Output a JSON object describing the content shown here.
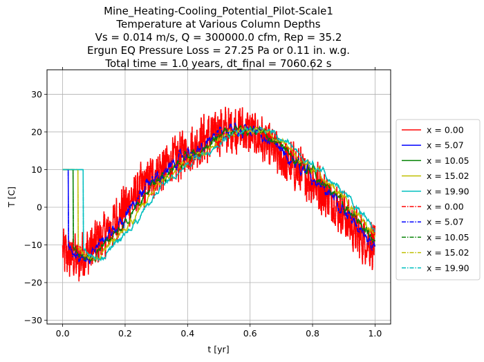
{
  "chart_data": {
    "type": "line",
    "title_lines": [
      "Mine_Heating-Cooling_Potential_Pilot-Scale1",
      "Temperature at Various Column Depths",
      "Vs = 0.014 m/s, Q = 300000.0 cfm, Rep = 35.2",
      "Ergun EQ Pressure Loss = 27.25 Pa or 0.11 in. w.g.",
      "Total time = 1.0 years, dt_final = 7060.62 s"
    ],
    "xlabel": "t [yr]",
    "ylabel": "T [C]",
    "xlim": [
      -0.05,
      1.05
    ],
    "ylim": [
      -31,
      36.5
    ],
    "xticks": [
      0.0,
      0.2,
      0.4,
      0.6,
      0.8,
      1.0
    ],
    "xtick_labels": [
      "0.0",
      "0.2",
      "0.4",
      "0.6",
      "0.8",
      "1.0"
    ],
    "yticks": [
      -30,
      -20,
      -10,
      0,
      10,
      20,
      30
    ],
    "ytick_labels": [
      "−30",
      "−20",
      "−10",
      "0",
      "10",
      "20",
      "30"
    ],
    "grid": true,
    "legend_position": "outside-right",
    "initial_temperature": 10,
    "series": [
      {
        "name": "x = 0.00",
        "color": "#ff0000",
        "dash": "solid",
        "lag": 0.0,
        "smooth": 0.0
      },
      {
        "name": "x = 5.07",
        "color": "#0000ff",
        "dash": "solid",
        "lag": 0.018,
        "smooth": 0.45
      },
      {
        "name": "x = 10.05",
        "color": "#008000",
        "dash": "solid",
        "lag": 0.034,
        "smooth": 0.62
      },
      {
        "name": "x = 15.02",
        "color": "#bfbf00",
        "dash": "solid",
        "lag": 0.05,
        "smooth": 0.76
      },
      {
        "name": "x = 19.90",
        "color": "#00bfbf",
        "dash": "solid",
        "lag": 0.066,
        "smooth": 0.88
      },
      {
        "name": "x = 0.00",
        "color": "#ff0000",
        "dash": "dashdot",
        "lag": 0.0,
        "smooth": 0.0
      },
      {
        "name": "x = 5.07",
        "color": "#0000ff",
        "dash": "dashdot",
        "lag": 0.018,
        "smooth": 0.45
      },
      {
        "name": "x = 10.05",
        "color": "#008000",
        "dash": "dashdot",
        "lag": 0.034,
        "smooth": 0.62
      },
      {
        "name": "x = 15.02",
        "color": "#bfbf00",
        "dash": "dashdot",
        "lag": 0.05,
        "smooth": 0.76
      },
      {
        "name": "x = 19.90",
        "color": "#00bfbf",
        "dash": "dashdot",
        "lag": 0.066,
        "smooth": 0.88
      }
    ],
    "trend_t": [
      0.0,
      0.05,
      0.1,
      0.15,
      0.2,
      0.25,
      0.3,
      0.35,
      0.4,
      0.45,
      0.5,
      0.55,
      0.6,
      0.65,
      0.7,
      0.75,
      0.8,
      0.85,
      0.9,
      0.95,
      1.0
    ],
    "trend_T": [
      -12,
      -14,
      -10,
      -6,
      0,
      5,
      9,
      12,
      15,
      18,
      20,
      21,
      20,
      17,
      13,
      10,
      7,
      3,
      -2,
      -8,
      -10
    ],
    "noise_amplitude": 6
  }
}
